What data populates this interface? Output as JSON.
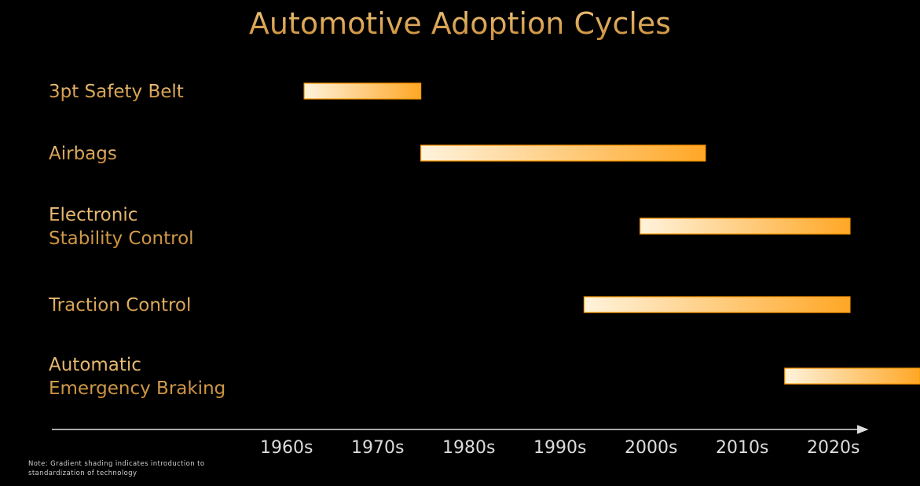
{
  "title": "Automotive Adoption Cycles",
  "note": "Note: Gradient shading indicates introduction to standardization of technology",
  "colors": {
    "background": "#000000",
    "label": "#e0ae66",
    "bar_start": "#fff3dc",
    "bar_end": "#ffa726",
    "bar_border": "#ff9a00",
    "axis": "#dcdcdc"
  },
  "chart_data": {
    "type": "gantt",
    "title": "Automotive Adoption Cycles",
    "x_ticks": [
      "1960s",
      "1970s",
      "1980s",
      "1990s",
      "2000s",
      "2010s",
      "2020s"
    ],
    "xlim": [
      1952,
      2025
    ],
    "items": [
      {
        "label_lines": [
          "3pt Safety Belt"
        ],
        "start": 1959,
        "end": 1971.5
      },
      {
        "label_lines": [
          "Airbags"
        ],
        "start": 1971.5,
        "end": 2002
      },
      {
        "label_lines": [
          "Electronic",
          "Stability Control"
        ],
        "start": 1995,
        "end": 2017.5
      },
      {
        "label_lines": [
          "Traction Control"
        ],
        "start": 1989,
        "end": 2017.5
      },
      {
        "label_lines": [
          "Automatic",
          "Emergency Braking"
        ],
        "start": 2010.5,
        "end": 2025
      }
    ]
  }
}
